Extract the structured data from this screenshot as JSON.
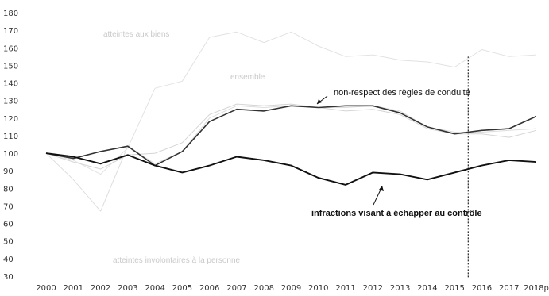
{
  "chart_data": {
    "type": "line",
    "title": "",
    "xlabel": "",
    "ylabel": "",
    "categories": [
      "2000",
      "2001",
      "2002",
      "2003",
      "2004",
      "2005",
      "2006",
      "2007",
      "2008",
      "2009",
      "2010",
      "2011",
      "2012",
      "2013",
      "2014",
      "2015",
      "2016",
      "2017",
      "2018p"
    ],
    "yticks": [
      30,
      40,
      50,
      60,
      70,
      80,
      90,
      100,
      110,
      120,
      130,
      140,
      150,
      160,
      170,
      180
    ],
    "ylim": [
      30,
      180
    ],
    "grid": false,
    "legend": "none",
    "series": [
      {
        "name": "atteintes aux biens",
        "color": "#e2e2e2",
        "values": [
          100,
          96,
          88,
          103,
          137,
          141,
          166,
          169,
          163,
          169,
          161,
          155,
          156,
          153,
          152,
          149,
          159,
          155,
          156
        ]
      },
      {
        "name": "ensemble",
        "color": "#d5d5d5",
        "values": [
          100,
          95,
          91,
          99,
          100,
          106,
          122,
          128,
          127,
          128,
          126,
          124,
          125,
          122,
          114,
          111,
          111,
          109,
          113
        ]
      },
      {
        "name": "atteintes involontaires à la personne",
        "color": "#dddddd",
        "values": [
          100,
          85,
          67,
          104,
          94,
          101,
          120,
          127,
          126,
          127,
          126,
          126,
          127,
          124,
          115,
          112,
          112,
          113,
          114
        ]
      },
      {
        "name": "non-respect des règles de conduite",
        "color": "#333333",
        "values": [
          100,
          97,
          101,
          104,
          93,
          101,
          118,
          125,
          124,
          127,
          126,
          127,
          127,
          123,
          115,
          111,
          113,
          114,
          121
        ]
      },
      {
        "name": "infractions visant à échapper au contrôle",
        "color": "#111111",
        "values": [
          100,
          98,
          94,
          99,
          93,
          89,
          93,
          98,
          96,
          93,
          86,
          82,
          89,
          88,
          85,
          89,
          93,
          96,
          95
        ]
      }
    ],
    "annotations": [
      {
        "text": "non-respect des règles de conduite",
        "series": 3
      },
      {
        "text": "infractions visant à échapper au contrôle",
        "series": 4
      },
      {
        "text": "atteintes aux biens",
        "series": 0
      },
      {
        "text": "ensemble",
        "series": 1
      },
      {
        "text": "atteintes involontaires à la personne",
        "series": 2
      }
    ],
    "vline_after_category": "2015"
  }
}
